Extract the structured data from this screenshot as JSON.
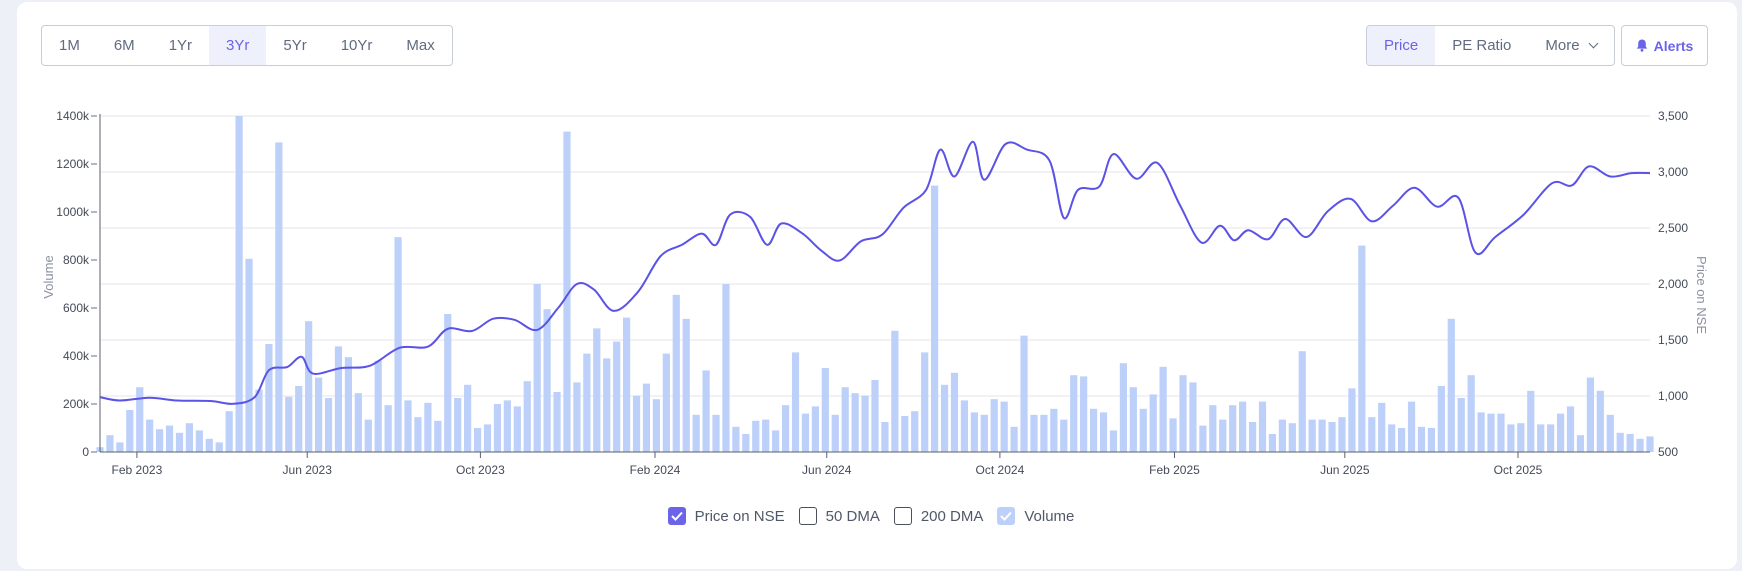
{
  "range_buttons": [
    {
      "label": "1M",
      "active": false
    },
    {
      "label": "6M",
      "active": false
    },
    {
      "label": "1Yr",
      "active": false
    },
    {
      "label": "3Yr",
      "active": true
    },
    {
      "label": "5Yr",
      "active": false
    },
    {
      "label": "10Yr",
      "active": false
    },
    {
      "label": "Max",
      "active": false
    }
  ],
  "metric_buttons": {
    "price": "Price",
    "pe_ratio": "PE Ratio",
    "more": "More"
  },
  "alerts_label": "Alerts",
  "legend": {
    "price": "Price on NSE",
    "dma50": "50 DMA",
    "dma200": "200 DMA",
    "volume": "Volume"
  },
  "colors": {
    "price_line": "#5b52e6",
    "volume_bar": "#bcd0fa",
    "grid": "#e4e6ec",
    "accent": "#6b63e8"
  },
  "chart_data": {
    "type": "bar+line",
    "x_start": "2023-01-06",
    "x_end": "2026-01-02",
    "x_ticks": [
      "Feb 2023",
      "Jun 2023",
      "Oct 2023",
      "Feb 2024",
      "Jun 2024",
      "Oct 2024",
      "Feb 2025",
      "Jun 2025",
      "Oct 2025"
    ],
    "y_left": {
      "label": "Volume",
      "range": [
        0,
        1400000
      ],
      "ticks": [
        "0",
        "200k",
        "400k",
        "600k",
        "800k",
        "1000k",
        "1200k",
        "1400k"
      ]
    },
    "y_right": {
      "label": "Price on NSE",
      "range": [
        500,
        3500
      ],
      "ticks": [
        "500",
        "1,000",
        "1,500",
        "2,000",
        "2,500",
        "3,000",
        "3,500"
      ]
    },
    "grid": true,
    "volume_weekly": [
      20000,
      70000,
      40000,
      175000,
      270000,
      135000,
      95000,
      110000,
      80000,
      120000,
      90000,
      55000,
      40000,
      170000,
      1400000,
      805000,
      260000,
      450000,
      1290000,
      230000,
      275000,
      545000,
      310000,
      225000,
      440000,
      395000,
      245000,
      135000,
      380000,
      195000,
      895000,
      215000,
      145000,
      205000,
      130000,
      575000,
      225000,
      280000,
      100000,
      115000,
      200000,
      215000,
      190000,
      295000,
      700000,
      595000,
      250000,
      1335000,
      290000,
      410000,
      515000,
      390000,
      460000,
      560000,
      235000,
      285000,
      220000,
      410000,
      655000,
      555000,
      155000,
      340000,
      155000,
      700000,
      105000,
      75000,
      130000,
      135000,
      90000,
      195000,
      415000,
      160000,
      190000,
      350000,
      155000,
      270000,
      245000,
      235000,
      300000,
      125000,
      505000,
      150000,
      170000,
      415000,
      1110000,
      280000,
      330000,
      215000,
      165000,
      155000,
      220000,
      210000,
      105000,
      485000,
      155000,
      155000,
      180000,
      135000,
      320000,
      315000,
      180000,
      165000,
      90000,
      370000,
      270000,
      180000,
      240000,
      355000,
      140000,
      320000,
      290000,
      110000,
      195000,
      135000,
      195000,
      210000,
      125000,
      210000,
      75000,
      135000,
      120000,
      420000,
      135000,
      135000,
      125000,
      145000,
      265000,
      860000,
      145000,
      205000,
      115000,
      100000,
      210000,
      105000,
      100000,
      275000,
      555000,
      225000,
      320000,
      165000,
      160000,
      160000,
      115000,
      120000,
      255000,
      115000,
      115000,
      160000,
      190000,
      70000,
      310000,
      255000,
      155000,
      80000,
      75000,
      55000,
      65000
    ],
    "price_points": [
      [
        "2023-01-06",
        990
      ],
      [
        "2023-01-20",
        960
      ],
      [
        "2023-02-10",
        985
      ],
      [
        "2023-03-01",
        960
      ],
      [
        "2023-03-25",
        955
      ],
      [
        "2023-04-10",
        930
      ],
      [
        "2023-04-25",
        990
      ],
      [
        "2023-05-05",
        1230
      ],
      [
        "2023-05-18",
        1260
      ],
      [
        "2023-05-28",
        1350
      ],
      [
        "2023-06-05",
        1200
      ],
      [
        "2023-06-25",
        1250
      ],
      [
        "2023-07-15",
        1270
      ],
      [
        "2023-08-05",
        1430
      ],
      [
        "2023-08-25",
        1440
      ],
      [
        "2023-09-08",
        1600
      ],
      [
        "2023-09-25",
        1580
      ],
      [
        "2023-10-10",
        1690
      ],
      [
        "2023-10-25",
        1680
      ],
      [
        "2023-11-10",
        1590
      ],
      [
        "2023-11-25",
        1790
      ],
      [
        "2023-12-08",
        2000
      ],
      [
        "2023-12-20",
        1950
      ],
      [
        "2024-01-03",
        1760
      ],
      [
        "2024-01-20",
        1930
      ],
      [
        "2024-02-05",
        2250
      ],
      [
        "2024-02-20",
        2350
      ],
      [
        "2024-03-05",
        2450
      ],
      [
        "2024-03-15",
        2350
      ],
      [
        "2024-03-25",
        2620
      ],
      [
        "2024-04-08",
        2600
      ],
      [
        "2024-04-20",
        2350
      ],
      [
        "2024-04-30",
        2540
      ],
      [
        "2024-05-15",
        2450
      ],
      [
        "2024-05-28",
        2300
      ],
      [
        "2024-06-10",
        2210
      ],
      [
        "2024-06-25",
        2380
      ],
      [
        "2024-07-10",
        2440
      ],
      [
        "2024-07-25",
        2680
      ],
      [
        "2024-08-10",
        2840
      ],
      [
        "2024-08-20",
        3200
      ],
      [
        "2024-08-30",
        2960
      ],
      [
        "2024-09-12",
        3270
      ],
      [
        "2024-09-20",
        2930
      ],
      [
        "2024-10-05",
        3250
      ],
      [
        "2024-10-20",
        3200
      ],
      [
        "2024-11-05",
        3100
      ],
      [
        "2024-11-15",
        2590
      ],
      [
        "2024-11-25",
        2840
      ],
      [
        "2024-12-10",
        2870
      ],
      [
        "2024-12-20",
        3160
      ],
      [
        "2025-01-05",
        2940
      ],
      [
        "2025-01-20",
        3080
      ],
      [
        "2025-02-05",
        2700
      ],
      [
        "2025-02-20",
        2370
      ],
      [
        "2025-03-05",
        2520
      ],
      [
        "2025-03-15",
        2390
      ],
      [
        "2025-03-25",
        2480
      ],
      [
        "2025-04-08",
        2400
      ],
      [
        "2025-04-20",
        2580
      ],
      [
        "2025-05-05",
        2420
      ],
      [
        "2025-05-20",
        2650
      ],
      [
        "2025-06-05",
        2760
      ],
      [
        "2025-06-20",
        2560
      ],
      [
        "2025-07-05",
        2700
      ],
      [
        "2025-07-20",
        2860
      ],
      [
        "2025-08-05",
        2690
      ],
      [
        "2025-08-20",
        2770
      ],
      [
        "2025-09-01",
        2280
      ],
      [
        "2025-09-15",
        2420
      ],
      [
        "2025-10-05",
        2620
      ],
      [
        "2025-10-25",
        2900
      ],
      [
        "2025-11-08",
        2880
      ],
      [
        "2025-11-20",
        3050
      ],
      [
        "2025-12-05",
        2960
      ],
      [
        "2025-12-20",
        2990
      ],
      [
        "2026-01-02",
        2990
      ]
    ]
  }
}
